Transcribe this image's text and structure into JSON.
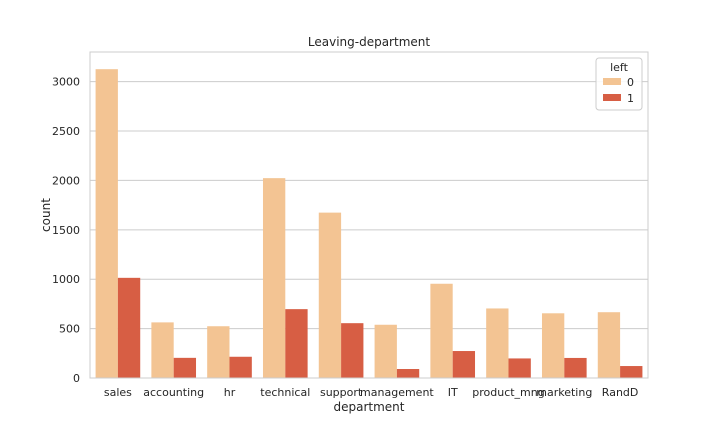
{
  "chart_data": {
    "type": "bar",
    "title": "Leaving-department",
    "xlabel": "department",
    "ylabel": "count",
    "categories": [
      "sales",
      "accounting",
      "hr",
      "technical",
      "support",
      "management",
      "IT",
      "product_mng",
      "marketing",
      "RandD"
    ],
    "series": [
      {
        "name": "0",
        "color": "#f3c493",
        "values": [
          3126,
          563,
          524,
          2023,
          1674,
          539,
          954,
          704,
          655,
          666
        ]
      },
      {
        "name": "1",
        "color": "#d75e44",
        "values": [
          1014,
          204,
          215,
          697,
          555,
          91,
          273,
          198,
          203,
          121
        ]
      }
    ],
    "ylim": [
      0,
      3300
    ],
    "yticks": [
      0,
      500,
      1000,
      1500,
      2000,
      2500,
      3000
    ],
    "grid": "horizontal",
    "legend": {
      "title": "left",
      "position": "top-right"
    }
  }
}
